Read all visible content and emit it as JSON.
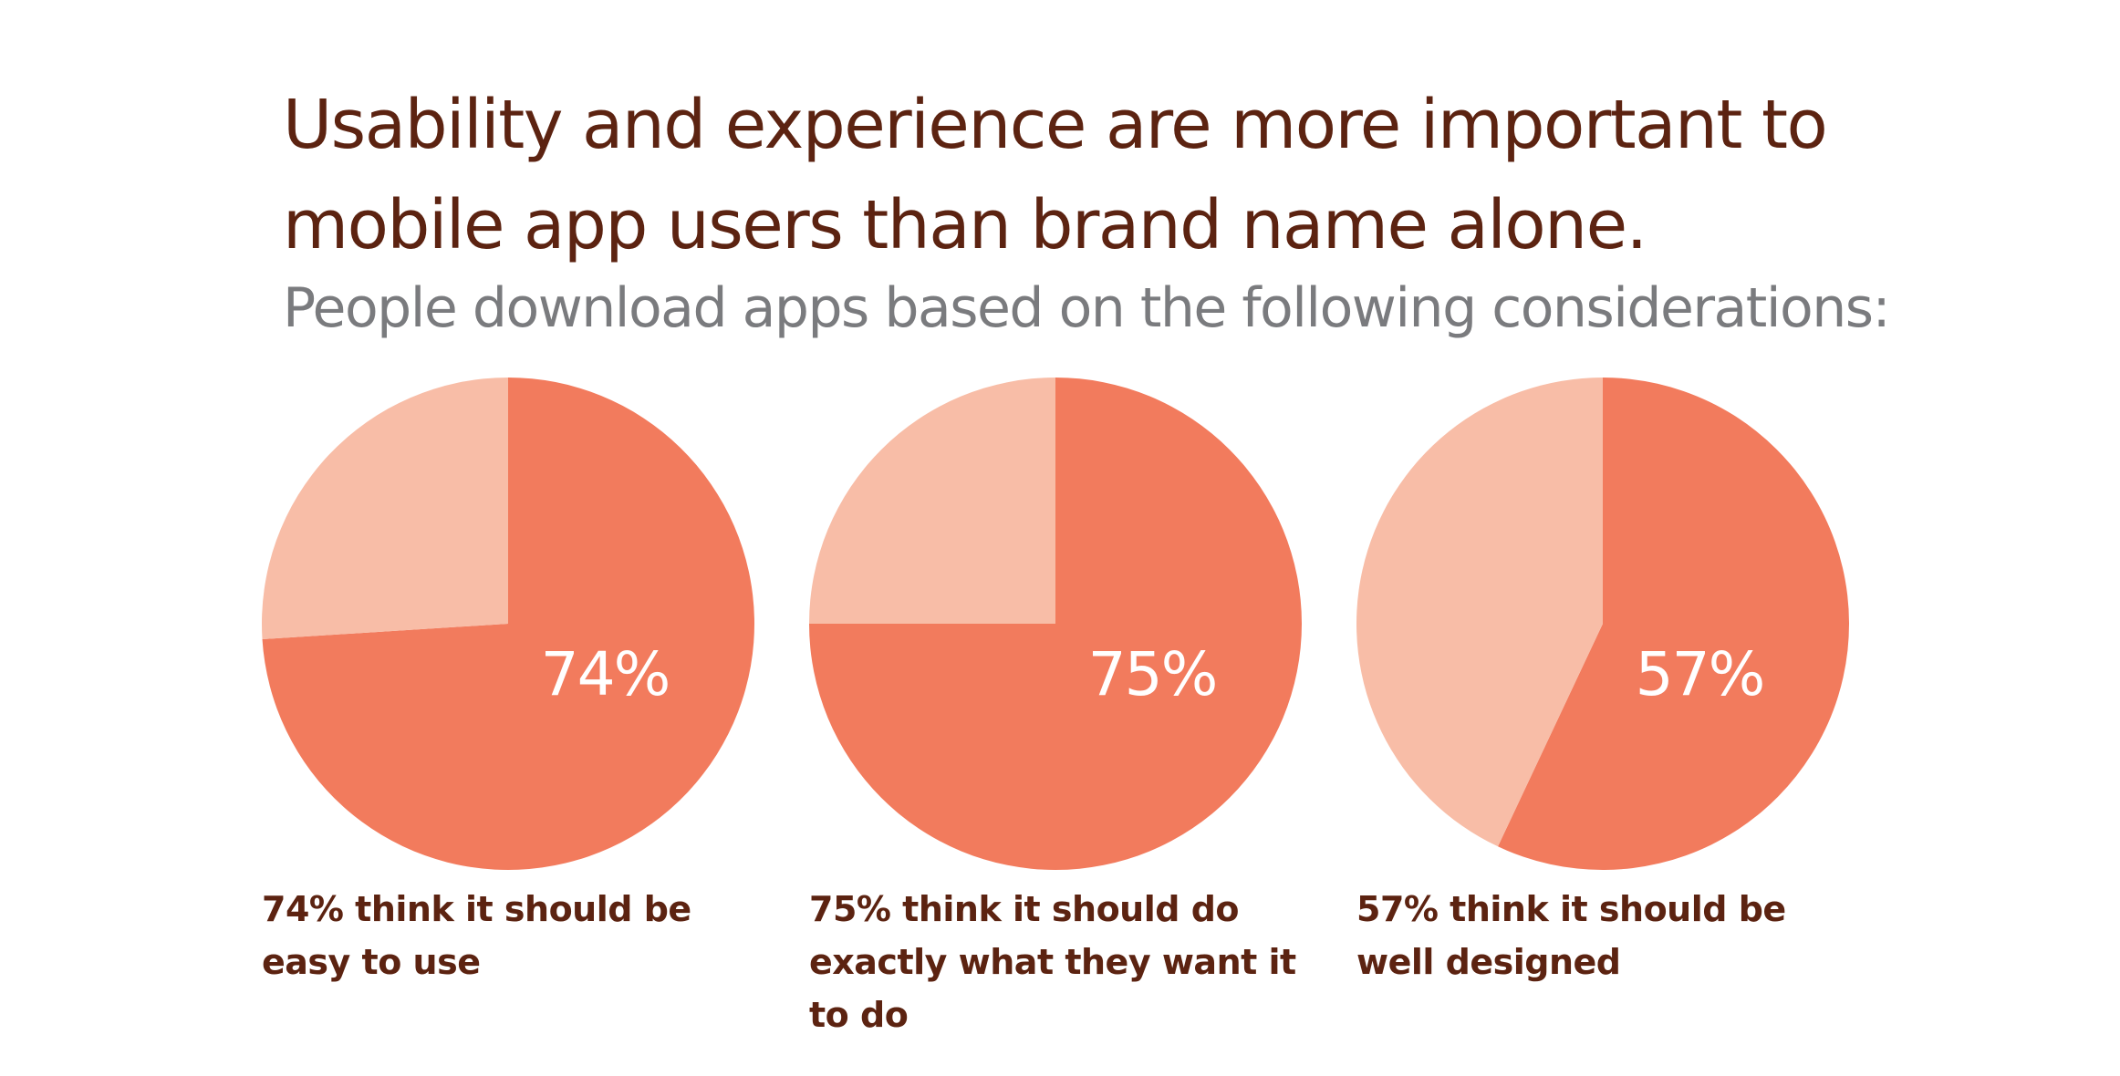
{
  "header": {
    "title": "Usability and experience are more important to mobile app users than brand name alone.",
    "subtitle": "People download apps based on the following considerations:"
  },
  "colors": {
    "primary_slice": "#f27b5d",
    "secondary_slice": "#f8bda7",
    "title_text": "#5c2311",
    "subtitle_text": "#7a7b7e"
  },
  "chart_data": [
    {
      "type": "pie",
      "slices": [
        {
          "label": "74%",
          "value": 74
        },
        {
          "label": "",
          "value": 26
        }
      ],
      "caption": "74% think it should be easy to use"
    },
    {
      "type": "pie",
      "slices": [
        {
          "label": "75%",
          "value": 75
        },
        {
          "label": "",
          "value": 25
        }
      ],
      "caption": "75% think it should do exactly what they want it to do"
    },
    {
      "type": "pie",
      "slices": [
        {
          "label": "57%",
          "value": 57
        },
        {
          "label": "",
          "value": 43
        }
      ],
      "caption": "57% think it should be well designed"
    }
  ]
}
